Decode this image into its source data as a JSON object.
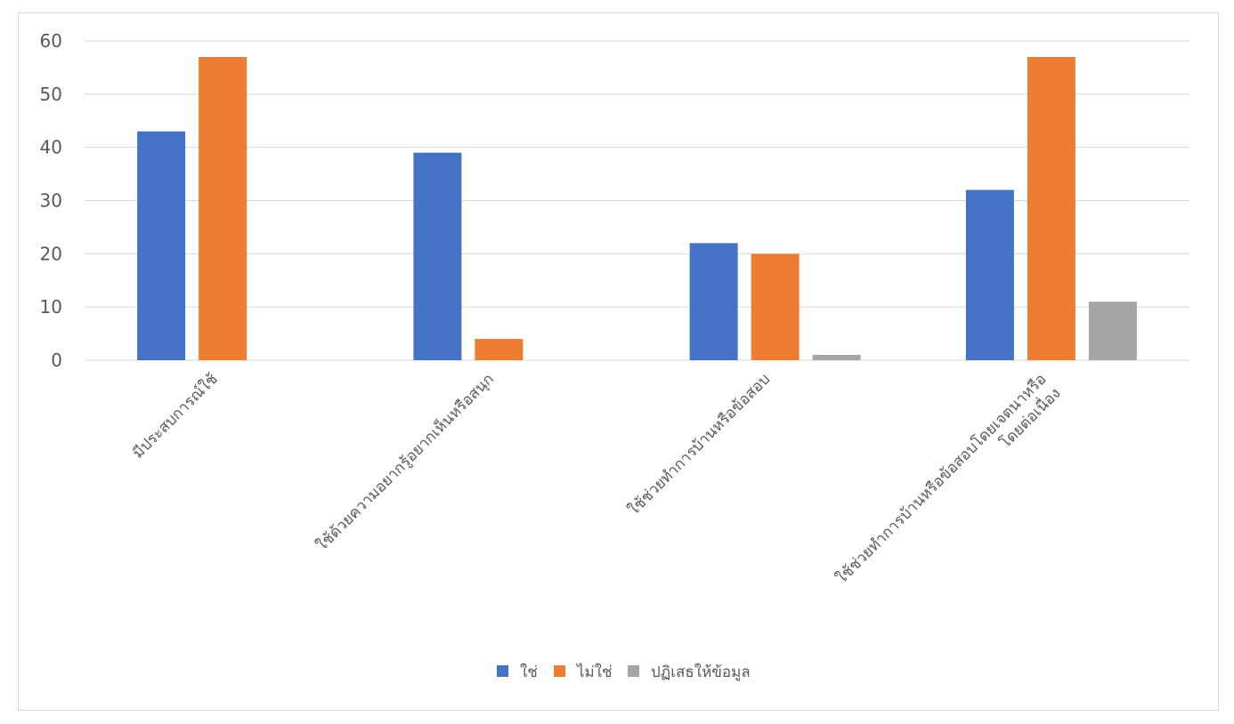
{
  "chart_data": {
    "type": "bar",
    "title": "",
    "xlabel": "",
    "ylabel": "",
    "ylim": [
      0,
      60
    ],
    "yticks": [
      0,
      10,
      20,
      30,
      40,
      50,
      60
    ],
    "grid": true,
    "legend_position": "bottom",
    "categories": [
      [
        "มีประสบการณ์ใช้"
      ],
      [
        "ใช้ด้วยความอยากรู้อยากเห็นหรือสนุก"
      ],
      [
        "ใช้ช่วยทำการบ้านหรือข้อสอบ"
      ],
      [
        "ใช้ช่วยทำการบ้านหรือข้อสอบโดยเจตนาหรือ",
        "โดยต่อเนื่อง"
      ]
    ],
    "series": [
      {
        "name": "ใช่",
        "color": "#4472C4",
        "values": [
          43,
          39,
          22,
          32
        ]
      },
      {
        "name": "ไม่ใช่",
        "color": "#ED7D31",
        "values": [
          57,
          4,
          20,
          57
        ]
      },
      {
        "name": "ปฏิเสธให้ข้อมูล",
        "color": "#A5A5A5",
        "values": [
          0,
          0,
          1,
          11
        ]
      }
    ]
  }
}
